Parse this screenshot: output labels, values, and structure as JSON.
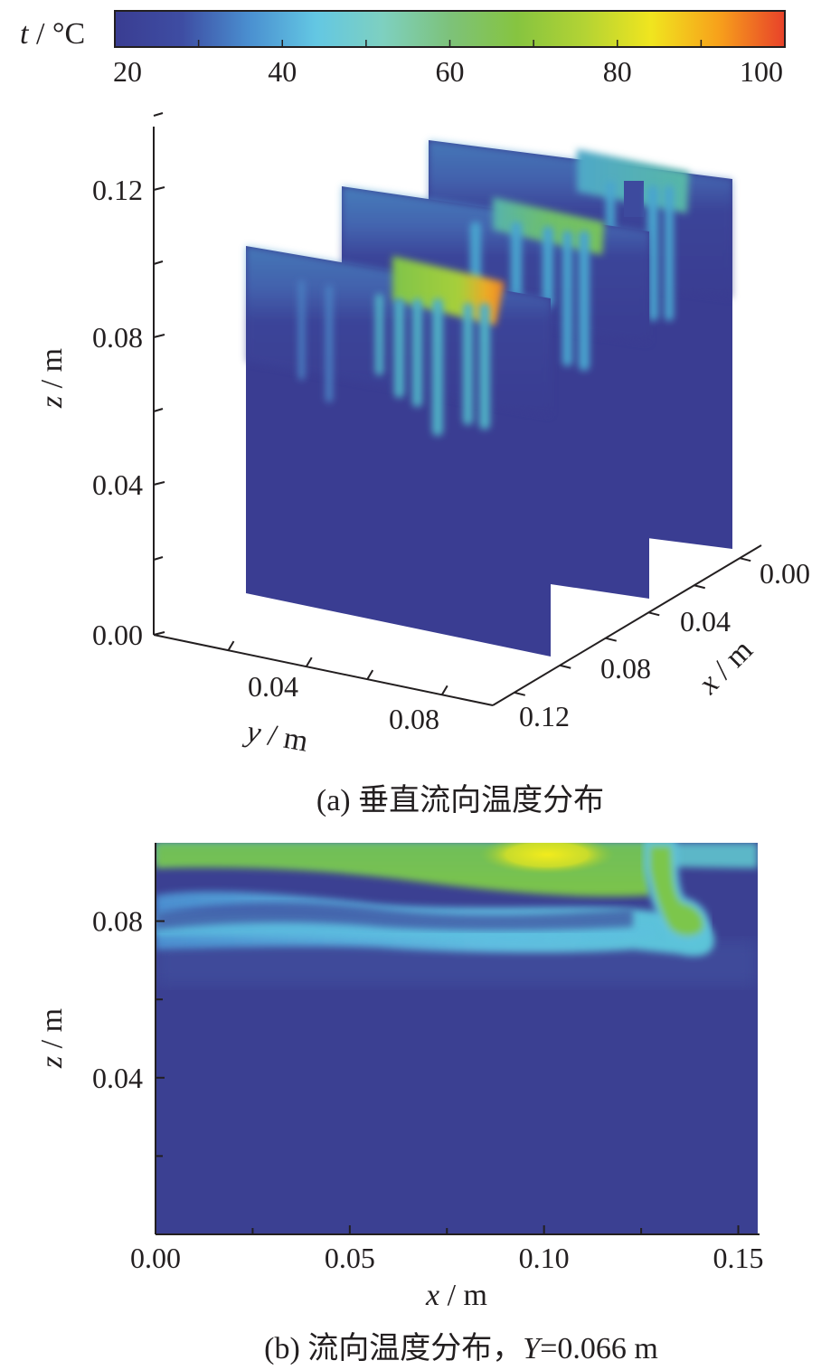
{
  "chart_data": [
    {
      "type": "colorbar",
      "label_var": "t",
      "label_unit": " / °C",
      "range": [
        20,
        100
      ],
      "ticks": [
        "20",
        "40",
        "60",
        "80",
        "100"
      ],
      "colors": [
        "#3a3d92",
        "#3e4da3",
        "#4a8fd0",
        "#63c7e3",
        "#7ed0c0",
        "#7dc27a",
        "#86c440",
        "#b3d334",
        "#f0e51f",
        "#f7a21b",
        "#e8412a"
      ]
    },
    {
      "type": "heatmap",
      "subtype": "3d-slices",
      "xlabel_var": "x",
      "xlabel_unit": " / m",
      "ylabel_var": "y",
      "ylabel_unit": " / m",
      "zlabel_var": "z",
      "zlabel_unit": " / m",
      "x_ticks": [
        "0.00",
        "0.04",
        "0.08",
        "0.12"
      ],
      "y_ticks": [
        "0.04",
        "0.08"
      ],
      "z_ticks": [
        "0.12",
        "0.08",
        "0.04",
        "0.00"
      ],
      "slice_positions_x": [
        0.02,
        0.066,
        0.11
      ],
      "caption": "(a) 垂直流向温度分布"
    },
    {
      "type": "heatmap",
      "xlabel_var": "x",
      "xlabel_unit": " / m",
      "ylabel_var": "z",
      "ylabel_unit": " / m",
      "x_ticks": [
        "0.00",
        "0.05",
        "0.10",
        "0.15"
      ],
      "y_ticks": [
        "0.08",
        "0.04"
      ],
      "xlim": [
        0.0,
        0.155
      ],
      "ylim": [
        0.0,
        0.1
      ],
      "caption_prefix": "(b) 流向温度分布，",
      "caption_var": "Y",
      "caption_value": "=0.066 m"
    }
  ]
}
